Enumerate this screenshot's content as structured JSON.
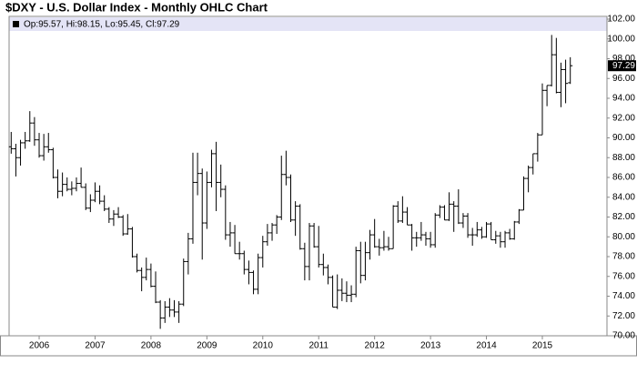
{
  "chart_data": {
    "type": "ohlc",
    "title": "$DXY - U.S. Dollar Index - Monthly OHLC Chart",
    "legend_text": "Op:95.57, Hi:98.15, Lo:95.45, Cl:97.29",
    "color": "#000000",
    "categories": [
      null,
      null,
      null,
      null,
      null,
      null,
      "2006",
      null,
      null,
      null,
      null,
      null,
      null,
      null,
      null,
      null,
      null,
      null,
      "2007",
      null,
      null,
      null,
      null,
      null,
      null,
      null,
      null,
      null,
      null,
      null,
      "2008",
      null,
      null,
      null,
      null,
      null,
      null,
      null,
      null,
      null,
      null,
      null,
      "2009",
      null,
      null,
      null,
      null,
      null,
      null,
      null,
      null,
      null,
      null,
      null,
      "2010",
      null,
      null,
      null,
      null,
      null,
      null,
      null,
      null,
      null,
      null,
      null,
      "2011",
      null,
      null,
      null,
      null,
      null,
      null,
      null,
      null,
      null,
      null,
      null,
      "2012",
      null,
      null,
      null,
      null,
      null,
      null,
      null,
      null,
      null,
      null,
      null,
      "2013",
      null,
      null,
      null,
      null,
      null,
      null,
      null,
      null,
      null,
      null,
      null,
      "2014",
      null,
      null,
      null,
      null,
      null,
      null,
      null,
      null,
      null,
      null,
      null,
      "2015",
      null,
      null,
      null,
      null,
      null,
      null
    ],
    "open": [
      89.1,
      88.9,
      88.0,
      89.5,
      89.7,
      91.5,
      89.8,
      88.2,
      89.1,
      88.8,
      86.0,
      84.6,
      85.3,
      84.8,
      84.9,
      85.4,
      85.0,
      82.9,
      83.7,
      84.6,
      83.6,
      82.8,
      81.8,
      82.3,
      82.0,
      80.3,
      80.8,
      78.0,
      76.6,
      75.9,
      76.7,
      75.0,
      73.4,
      71.8,
      72.9,
      72.6,
      72.4,
      73.2,
      77.5,
      79.8,
      85.5,
      86.4,
      81.4,
      85.5,
      88.4,
      85.5,
      84.8,
      80.2,
      80.4,
      78.3,
      78.3,
      76.7,
      76.4,
      74.7,
      77.9,
      79.5,
      80.4,
      81.2,
      82.0,
      86.3,
      86.0,
      81.7,
      83.1,
      78.8,
      77.0,
      81.1,
      79.0,
      77.2,
      76.9,
      75.9,
      72.9,
      74.6,
      74.3,
      74.1,
      74.2,
      78.6,
      76.1,
      78.4,
      80.2,
      79.0,
      78.9,
      79.0,
      78.8,
      83.1,
      81.6,
      82.5,
      81.2,
      79.9,
      79.9,
      80.2,
      79.8,
      79.2,
      82.2,
      83.0,
      81.7,
      83.3,
      83.1,
      81.4,
      82.1,
      80.2,
      80.2,
      80.7,
      80.0,
      81.3,
      79.7,
      80.1,
      79.5,
      80.4,
      79.8,
      81.5,
      82.7,
      85.9,
      87.0,
      88.4,
      90.3,
      94.8,
      95.3,
      98.4,
      94.6,
      96.9,
      95.57
    ],
    "high": [
      90.6,
      89.4,
      89.8,
      90.6,
      92.7,
      92.1,
      90.5,
      90.4,
      90.5,
      89.0,
      86.8,
      86.5,
      86.0,
      85.6,
      86.0,
      87.0,
      85.4,
      84.3,
      85.5,
      85.2,
      84.2,
      83.0,
      82.7,
      83.0,
      82.2,
      82.3,
      81.0,
      78.3,
      76.9,
      77.9,
      77.3,
      76.5,
      73.6,
      73.5,
      73.8,
      73.6,
      73.5,
      77.8,
      80.4,
      88.5,
      88.5,
      86.9,
      86.6,
      88.8,
      89.6,
      87.3,
      85.2,
      81.5,
      81.2,
      79.5,
      78.6,
      77.6,
      76.6,
      78.3,
      80.1,
      81.3,
      81.4,
      82.2,
      88.2,
      88.7,
      86.3,
      83.6,
      83.3,
      79.4,
      81.4,
      81.4,
      81.1,
      78.3,
      77.2,
      76.1,
      76.2,
      75.8,
      75.5,
      75.1,
      79.0,
      79.5,
      79.5,
      80.7,
      81.8,
      79.8,
      80.6,
      80.0,
      83.2,
      83.6,
      84.1,
      83.0,
      81.3,
      80.5,
      81.5,
      80.5,
      80.5,
      82.4,
      83.2,
      83.2,
      84.5,
      83.6,
      84.8,
      82.4,
      82.4,
      80.9,
      81.5,
      81.0,
      81.5,
      81.5,
      80.6,
      80.5,
      80.6,
      80.8,
      81.6,
      82.8,
      86.1,
      87.2,
      88.4,
      90.5,
      95.5,
      95.3,
      100.4,
      100.1,
      97.6,
      97.9,
      98.15
    ],
    "low": [
      88.4,
      86.1,
      87.2,
      88.9,
      89.6,
      89.2,
      88.0,
      87.7,
      88.5,
      85.9,
      83.9,
      84.1,
      84.6,
      84.2,
      84.6,
      85.0,
      82.7,
      82.5,
      83.5,
      83.3,
      82.6,
      81.4,
      81.1,
      81.9,
      80.1,
      80.2,
      77.9,
      76.4,
      74.5,
      75.6,
      74.9,
      73.3,
      70.7,
      71.3,
      71.9,
      71.9,
      71.3,
      73.0,
      76.2,
      79.3,
      84.2,
      77.7,
      80.8,
      85.0,
      82.6,
      84.0,
      79.7,
      79.0,
      78.3,
      77.7,
      76.2,
      75.2,
      74.2,
      74.2,
      76.9,
      79.1,
      79.6,
      80.3,
      81.7,
      85.2,
      81.5,
      80.1,
      78.7,
      75.6,
      75.6,
      78.9,
      76.9,
      76.1,
      75.2,
      72.9,
      72.7,
      73.5,
      73.4,
      73.4,
      73.9,
      75.3,
      75.6,
      77.7,
      78.9,
      78.1,
      78.6,
      78.6,
      78.8,
      81.4,
      81.4,
      81.2,
      78.6,
      79.0,
      79.6,
      79.1,
      78.9,
      78.9,
      81.9,
      81.7,
      81.6,
      80.5,
      81.3,
      80.9,
      79.9,
      79.1,
      80.0,
      79.8,
      79.9,
      79.7,
      79.3,
      78.9,
      78.9,
      79.7,
      79.7,
      81.3,
      82.7,
      84.5,
      86.3,
      87.6,
      90.3,
      93.2,
      95.2,
      94.5,
      93.1,
      93.5,
      95.45
    ],
    "close": [
      88.9,
      88.0,
      89.5,
      89.7,
      91.5,
      89.8,
      88.2,
      89.1,
      88.8,
      86.0,
      84.6,
      85.3,
      84.8,
      84.9,
      85.4,
      85.0,
      82.9,
      83.7,
      84.6,
      83.6,
      82.8,
      81.8,
      82.3,
      82.0,
      80.3,
      80.8,
      78.0,
      76.6,
      75.9,
      76.7,
      75.0,
      73.4,
      71.8,
      72.9,
      72.6,
      72.4,
      73.2,
      77.5,
      79.8,
      85.5,
      86.4,
      81.4,
      85.5,
      88.4,
      85.5,
      84.8,
      80.2,
      80.4,
      78.3,
      78.3,
      76.7,
      76.4,
      74.7,
      77.9,
      79.5,
      80.4,
      81.2,
      82.0,
      86.3,
      86.0,
      81.7,
      83.1,
      78.8,
      77.0,
      81.1,
      79.0,
      77.2,
      76.9,
      75.9,
      72.9,
      74.6,
      74.3,
      74.1,
      74.2,
      78.6,
      76.1,
      78.4,
      80.2,
      79.0,
      78.9,
      79.0,
      78.8,
      83.1,
      81.6,
      82.5,
      81.2,
      79.9,
      79.9,
      80.2,
      79.8,
      79.2,
      82.2,
      83.0,
      81.7,
      83.3,
      83.1,
      81.4,
      82.1,
      80.2,
      80.2,
      80.7,
      80.0,
      81.3,
      79.7,
      80.1,
      79.5,
      80.4,
      79.8,
      81.5,
      82.7,
      85.9,
      87.0,
      88.4,
      90.3,
      94.8,
      95.3,
      98.4,
      94.6,
      96.9,
      95.5,
      97.29
    ],
    "ylim": [
      70,
      102
    ],
    "yticks": [
      {
        "value": 70,
        "label": "70.00"
      },
      {
        "value": 72,
        "label": "72.00"
      },
      {
        "value": 74,
        "label": "74.00"
      },
      {
        "value": 76,
        "label": "76.00"
      },
      {
        "value": 78,
        "label": "78.00"
      },
      {
        "value": 80,
        "label": "80.00"
      },
      {
        "value": 82,
        "label": "82.00"
      },
      {
        "value": 84,
        "label": "84.00"
      },
      {
        "value": 86,
        "label": "86.00"
      },
      {
        "value": 88,
        "label": "88.00"
      },
      {
        "value": 90,
        "label": "90.00"
      },
      {
        "value": 92,
        "label": "92.00"
      },
      {
        "value": 94,
        "label": "94.00"
      },
      {
        "value": 96,
        "label": "96.00"
      },
      {
        "value": 98,
        "label": "98.00"
      },
      {
        "value": 100,
        "label": "100.00"
      },
      {
        "value": 102,
        "label": "102.00"
      }
    ],
    "grid": false
  }
}
